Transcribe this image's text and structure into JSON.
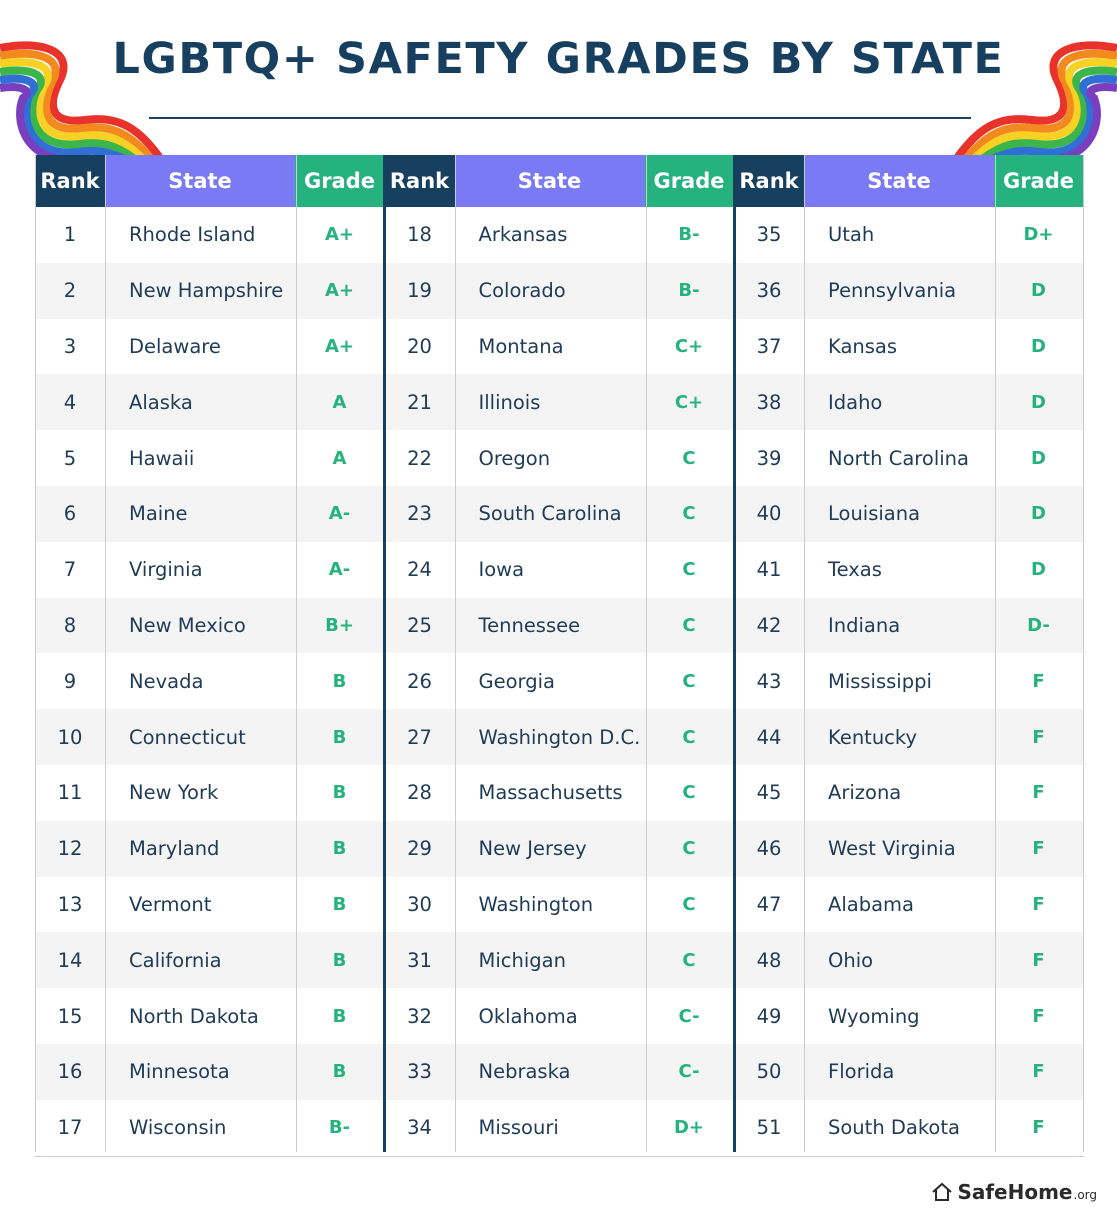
{
  "title": "LGBTQ+ SAFETY GRADES BY STATE",
  "headers": {
    "rank": "Rank",
    "state": "State",
    "grade": "Grade"
  },
  "brand": {
    "name": "SafeHome",
    "suffix": ".org"
  },
  "colors": {
    "navy": "#173f5f",
    "purple": "#7a7af5",
    "green": "#26b27f"
  },
  "chart_data": {
    "type": "table",
    "columns": [
      "Rank",
      "State",
      "Grade"
    ],
    "rows": [
      [
        1,
        "Rhode Island",
        "A+"
      ],
      [
        2,
        "New Hampshire",
        "A+"
      ],
      [
        3,
        "Delaware",
        "A+"
      ],
      [
        4,
        "Alaska",
        "A"
      ],
      [
        5,
        "Hawaii",
        "A"
      ],
      [
        6,
        "Maine",
        "A-"
      ],
      [
        7,
        "Virginia",
        "A-"
      ],
      [
        8,
        "New Mexico",
        "B+"
      ],
      [
        9,
        "Nevada",
        "B"
      ],
      [
        10,
        "Connecticut",
        "B"
      ],
      [
        11,
        "New York",
        "B"
      ],
      [
        12,
        "Maryland",
        "B"
      ],
      [
        13,
        "Vermont",
        "B"
      ],
      [
        14,
        "California",
        "B"
      ],
      [
        15,
        "North Dakota",
        "B"
      ],
      [
        16,
        "Minnesota",
        "B"
      ],
      [
        17,
        "Wisconsin",
        "B-"
      ],
      [
        18,
        "Arkansas",
        "B-"
      ],
      [
        19,
        "Colorado",
        "B-"
      ],
      [
        20,
        "Montana",
        "C+"
      ],
      [
        21,
        "Illinois",
        "C+"
      ],
      [
        22,
        "Oregon",
        "C"
      ],
      [
        23,
        "South Carolina",
        "C"
      ],
      [
        24,
        "Iowa",
        "C"
      ],
      [
        25,
        "Tennessee",
        "C"
      ],
      [
        26,
        "Georgia",
        "C"
      ],
      [
        27,
        "Washington D.C.",
        "C"
      ],
      [
        28,
        "Massachusetts",
        "C"
      ],
      [
        29,
        "New Jersey",
        "C"
      ],
      [
        30,
        "Washington",
        "C"
      ],
      [
        31,
        "Michigan",
        "C"
      ],
      [
        32,
        "Oklahoma",
        "C-"
      ],
      [
        33,
        "Nebraska",
        "C-"
      ],
      [
        34,
        "Missouri",
        "D+"
      ],
      [
        35,
        "Utah",
        "D+"
      ],
      [
        36,
        "Pennsylvania",
        "D"
      ],
      [
        37,
        "Kansas",
        "D"
      ],
      [
        38,
        "Idaho",
        "D"
      ],
      [
        39,
        "North Carolina",
        "D"
      ],
      [
        40,
        "Louisiana",
        "D"
      ],
      [
        41,
        "Texas",
        "D"
      ],
      [
        42,
        "Indiana",
        "D-"
      ],
      [
        43,
        "Mississippi",
        "F"
      ],
      [
        44,
        "Kentucky",
        "F"
      ],
      [
        45,
        "Arizona",
        "F"
      ],
      [
        46,
        "West Virginia",
        "F"
      ],
      [
        47,
        "Alabama",
        "F"
      ],
      [
        48,
        "Ohio",
        "F"
      ],
      [
        49,
        "Wyoming",
        "F"
      ],
      [
        50,
        "Florida",
        "F"
      ],
      [
        51,
        "South Dakota",
        "F"
      ]
    ]
  }
}
